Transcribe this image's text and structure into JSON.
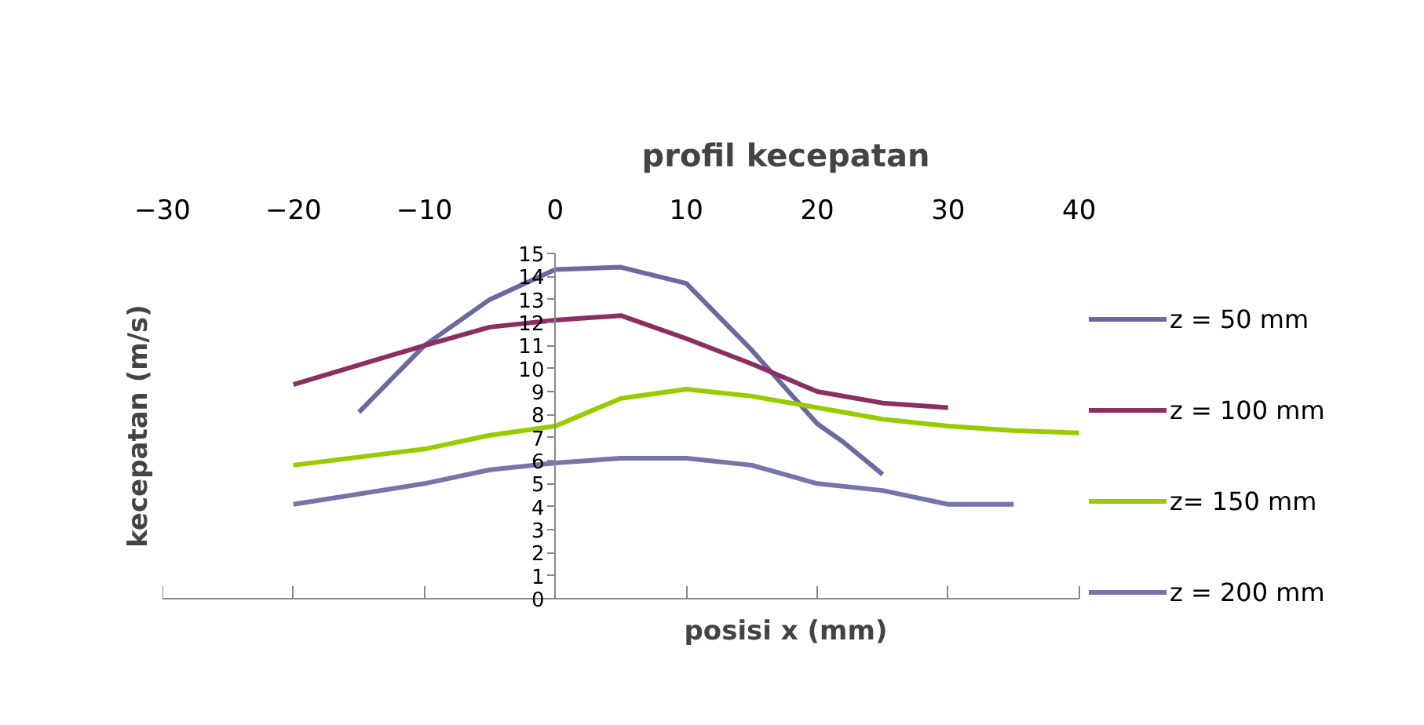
{
  "chart_data": {
    "type": "line",
    "title": "profil kecepatan",
    "xlabel": "posisi x (mm)",
    "ylabel": "kecepatan (m/s)",
    "xlim": [
      -30,
      40
    ],
    "xticks": [
      -30,
      -20,
      -10,
      0,
      10,
      20,
      30,
      40
    ],
    "ylim": [
      0,
      15
    ],
    "yticks": [
      0,
      1,
      2,
      3,
      4,
      5,
      6,
      7,
      8,
      9,
      10,
      11,
      12,
      13,
      14,
      15
    ],
    "grid": false,
    "legend": "right",
    "marker": "none",
    "line_style": "solid",
    "series": [
      {
        "name": "z = 50 mm",
        "color": "#6a6aa0",
        "x": [
          -15,
          -10,
          -5,
          0,
          5,
          10,
          15,
          20,
          22,
          25
        ],
        "values": [
          8.1,
          11.0,
          13.0,
          14.3,
          14.4,
          13.7,
          10.8,
          7.6,
          6.8,
          5.4
        ]
      },
      {
        "name": "z = 100 mm",
        "color": "#8b2e62",
        "x": [
          -20,
          -10,
          -5,
          0,
          5,
          10,
          15,
          20,
          25,
          30
        ],
        "values": [
          9.3,
          11.0,
          11.8,
          12.1,
          12.3,
          11.3,
          10.2,
          9.0,
          8.5,
          8.3
        ]
      },
      {
        "name": "z= 150 mm",
        "color": "#99cc00",
        "x": [
          -20,
          -10,
          -5,
          0,
          5,
          10,
          15,
          20,
          25,
          30,
          35,
          40
        ],
        "values": [
          5.8,
          6.5,
          7.1,
          7.5,
          8.7,
          9.1,
          8.8,
          8.3,
          7.8,
          7.5,
          7.3,
          7.2
        ]
      },
      {
        "name": "z = 200 mm",
        "color": "#7575aa",
        "x": [
          -20,
          -10,
          -5,
          0,
          5,
          10,
          15,
          20,
          25,
          30,
          35
        ],
        "values": [
          4.1,
          5.0,
          5.6,
          5.9,
          6.1,
          6.1,
          5.8,
          5.0,
          4.7,
          4.1,
          4.1
        ]
      }
    ]
  }
}
